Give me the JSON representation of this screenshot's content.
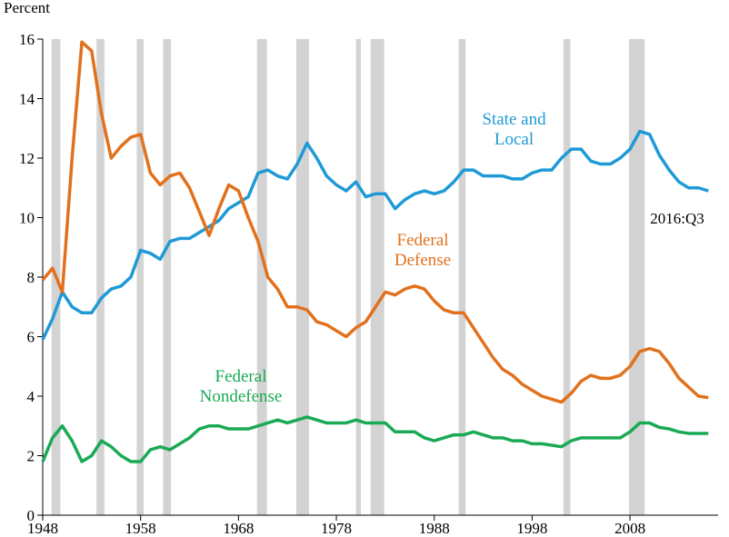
{
  "chart_data": {
    "type": "line",
    "y_label": "Percent",
    "annotation": "2016:Q3",
    "x": [
      1948,
      1949,
      1950,
      1951,
      1952,
      1953,
      1954,
      1955,
      1956,
      1957,
      1958,
      1959,
      1960,
      1961,
      1962,
      1963,
      1964,
      1965,
      1966,
      1967,
      1968,
      1969,
      1970,
      1971,
      1972,
      1973,
      1974,
      1975,
      1976,
      1977,
      1978,
      1979,
      1980,
      1981,
      1982,
      1983,
      1984,
      1985,
      1986,
      1987,
      1988,
      1989,
      1990,
      1991,
      1992,
      1993,
      1994,
      1995,
      1996,
      1997,
      1998,
      1999,
      2000,
      2001,
      2002,
      2003,
      2004,
      2005,
      2006,
      2007,
      2008,
      2009,
      2010,
      2011,
      2012,
      2013,
      2014,
      2015,
      2016
    ],
    "series": [
      {
        "name": "State and Local",
        "color": "#1f9ad6",
        "values": [
          5.9,
          6.6,
          7.5,
          7.0,
          6.8,
          6.8,
          7.3,
          7.6,
          7.7,
          8.0,
          8.9,
          8.8,
          8.6,
          9.2,
          9.3,
          9.3,
          9.5,
          9.7,
          9.9,
          10.3,
          10.5,
          10.7,
          11.5,
          11.6,
          11.4,
          11.3,
          11.8,
          12.5,
          12.0,
          11.4,
          11.1,
          10.9,
          11.2,
          10.7,
          10.8,
          10.8,
          10.3,
          10.6,
          10.8,
          10.9,
          10.8,
          10.9,
          11.2,
          11.6,
          11.6,
          11.4,
          11.4,
          11.4,
          11.3,
          11.3,
          11.5,
          11.6,
          11.6,
          12.0,
          12.3,
          12.3,
          11.9,
          11.8,
          11.8,
          12.0,
          12.3,
          12.9,
          12.8,
          12.1,
          11.6,
          11.2,
          11.0,
          11.0,
          10.9
        ]
      },
      {
        "name": "Federal Defense",
        "color": "#e2711d",
        "values": [
          7.9,
          8.3,
          7.5,
          12.0,
          15.9,
          15.6,
          13.5,
          12.0,
          12.4,
          12.7,
          12.8,
          11.5,
          11.1,
          11.4,
          11.5,
          11.0,
          10.2,
          9.4,
          10.3,
          11.1,
          10.9,
          10.0,
          9.2,
          8.0,
          7.6,
          7.0,
          7.0,
          6.9,
          6.5,
          6.4,
          6.2,
          6.0,
          6.3,
          6.5,
          7.0,
          7.5,
          7.4,
          7.6,
          7.7,
          7.6,
          7.2,
          6.9,
          6.8,
          6.8,
          6.3,
          5.8,
          5.3,
          4.9,
          4.7,
          4.4,
          4.2,
          4.0,
          3.9,
          3.8,
          4.1,
          4.5,
          4.7,
          4.6,
          4.6,
          4.7,
          5.0,
          5.5,
          5.6,
          5.5,
          5.1,
          4.6,
          4.3,
          4.0,
          3.95
        ]
      },
      {
        "name": "Federal Nondefense",
        "color": "#1aaa55",
        "values": [
          1.8,
          2.6,
          3.0,
          2.5,
          1.8,
          2.0,
          2.5,
          2.3,
          2.0,
          1.8,
          1.8,
          2.2,
          2.3,
          2.2,
          2.4,
          2.6,
          2.9,
          3.0,
          3.0,
          2.9,
          2.9,
          2.9,
          3.0,
          3.1,
          3.2,
          3.1,
          3.2,
          3.3,
          3.2,
          3.1,
          3.1,
          3.1,
          3.2,
          3.1,
          3.1,
          3.1,
          2.8,
          2.8,
          2.8,
          2.6,
          2.5,
          2.6,
          2.7,
          2.7,
          2.8,
          2.7,
          2.6,
          2.6,
          2.5,
          2.5,
          2.4,
          2.4,
          2.35,
          2.3,
          2.5,
          2.6,
          2.6,
          2.6,
          2.6,
          2.6,
          2.8,
          3.1,
          3.1,
          2.95,
          2.9,
          2.8,
          2.75,
          2.75,
          2.75
        ]
      }
    ],
    "recessions": [
      [
        1948.9,
        1949.8
      ],
      [
        1953.5,
        1954.3
      ],
      [
        1957.6,
        1958.3
      ],
      [
        1960.3,
        1961.1
      ],
      [
        1969.9,
        1970.9
      ],
      [
        1973.9,
        1975.2
      ],
      [
        1980.0,
        1980.5
      ],
      [
        1981.5,
        1982.9
      ],
      [
        1990.5,
        1991.2
      ],
      [
        2001.2,
        2001.9
      ],
      [
        2007.9,
        2009.5
      ]
    ],
    "recession_color": "#d3d3d3",
    "xlim": [
      1948,
      2017
    ],
    "xticks": [
      1948,
      1958,
      1968,
      1978,
      1988,
      1998,
      2008
    ],
    "ylim": [
      0,
      16
    ],
    "yticks": [
      0,
      2,
      4,
      6,
      8,
      10,
      12,
      14,
      16
    ]
  }
}
